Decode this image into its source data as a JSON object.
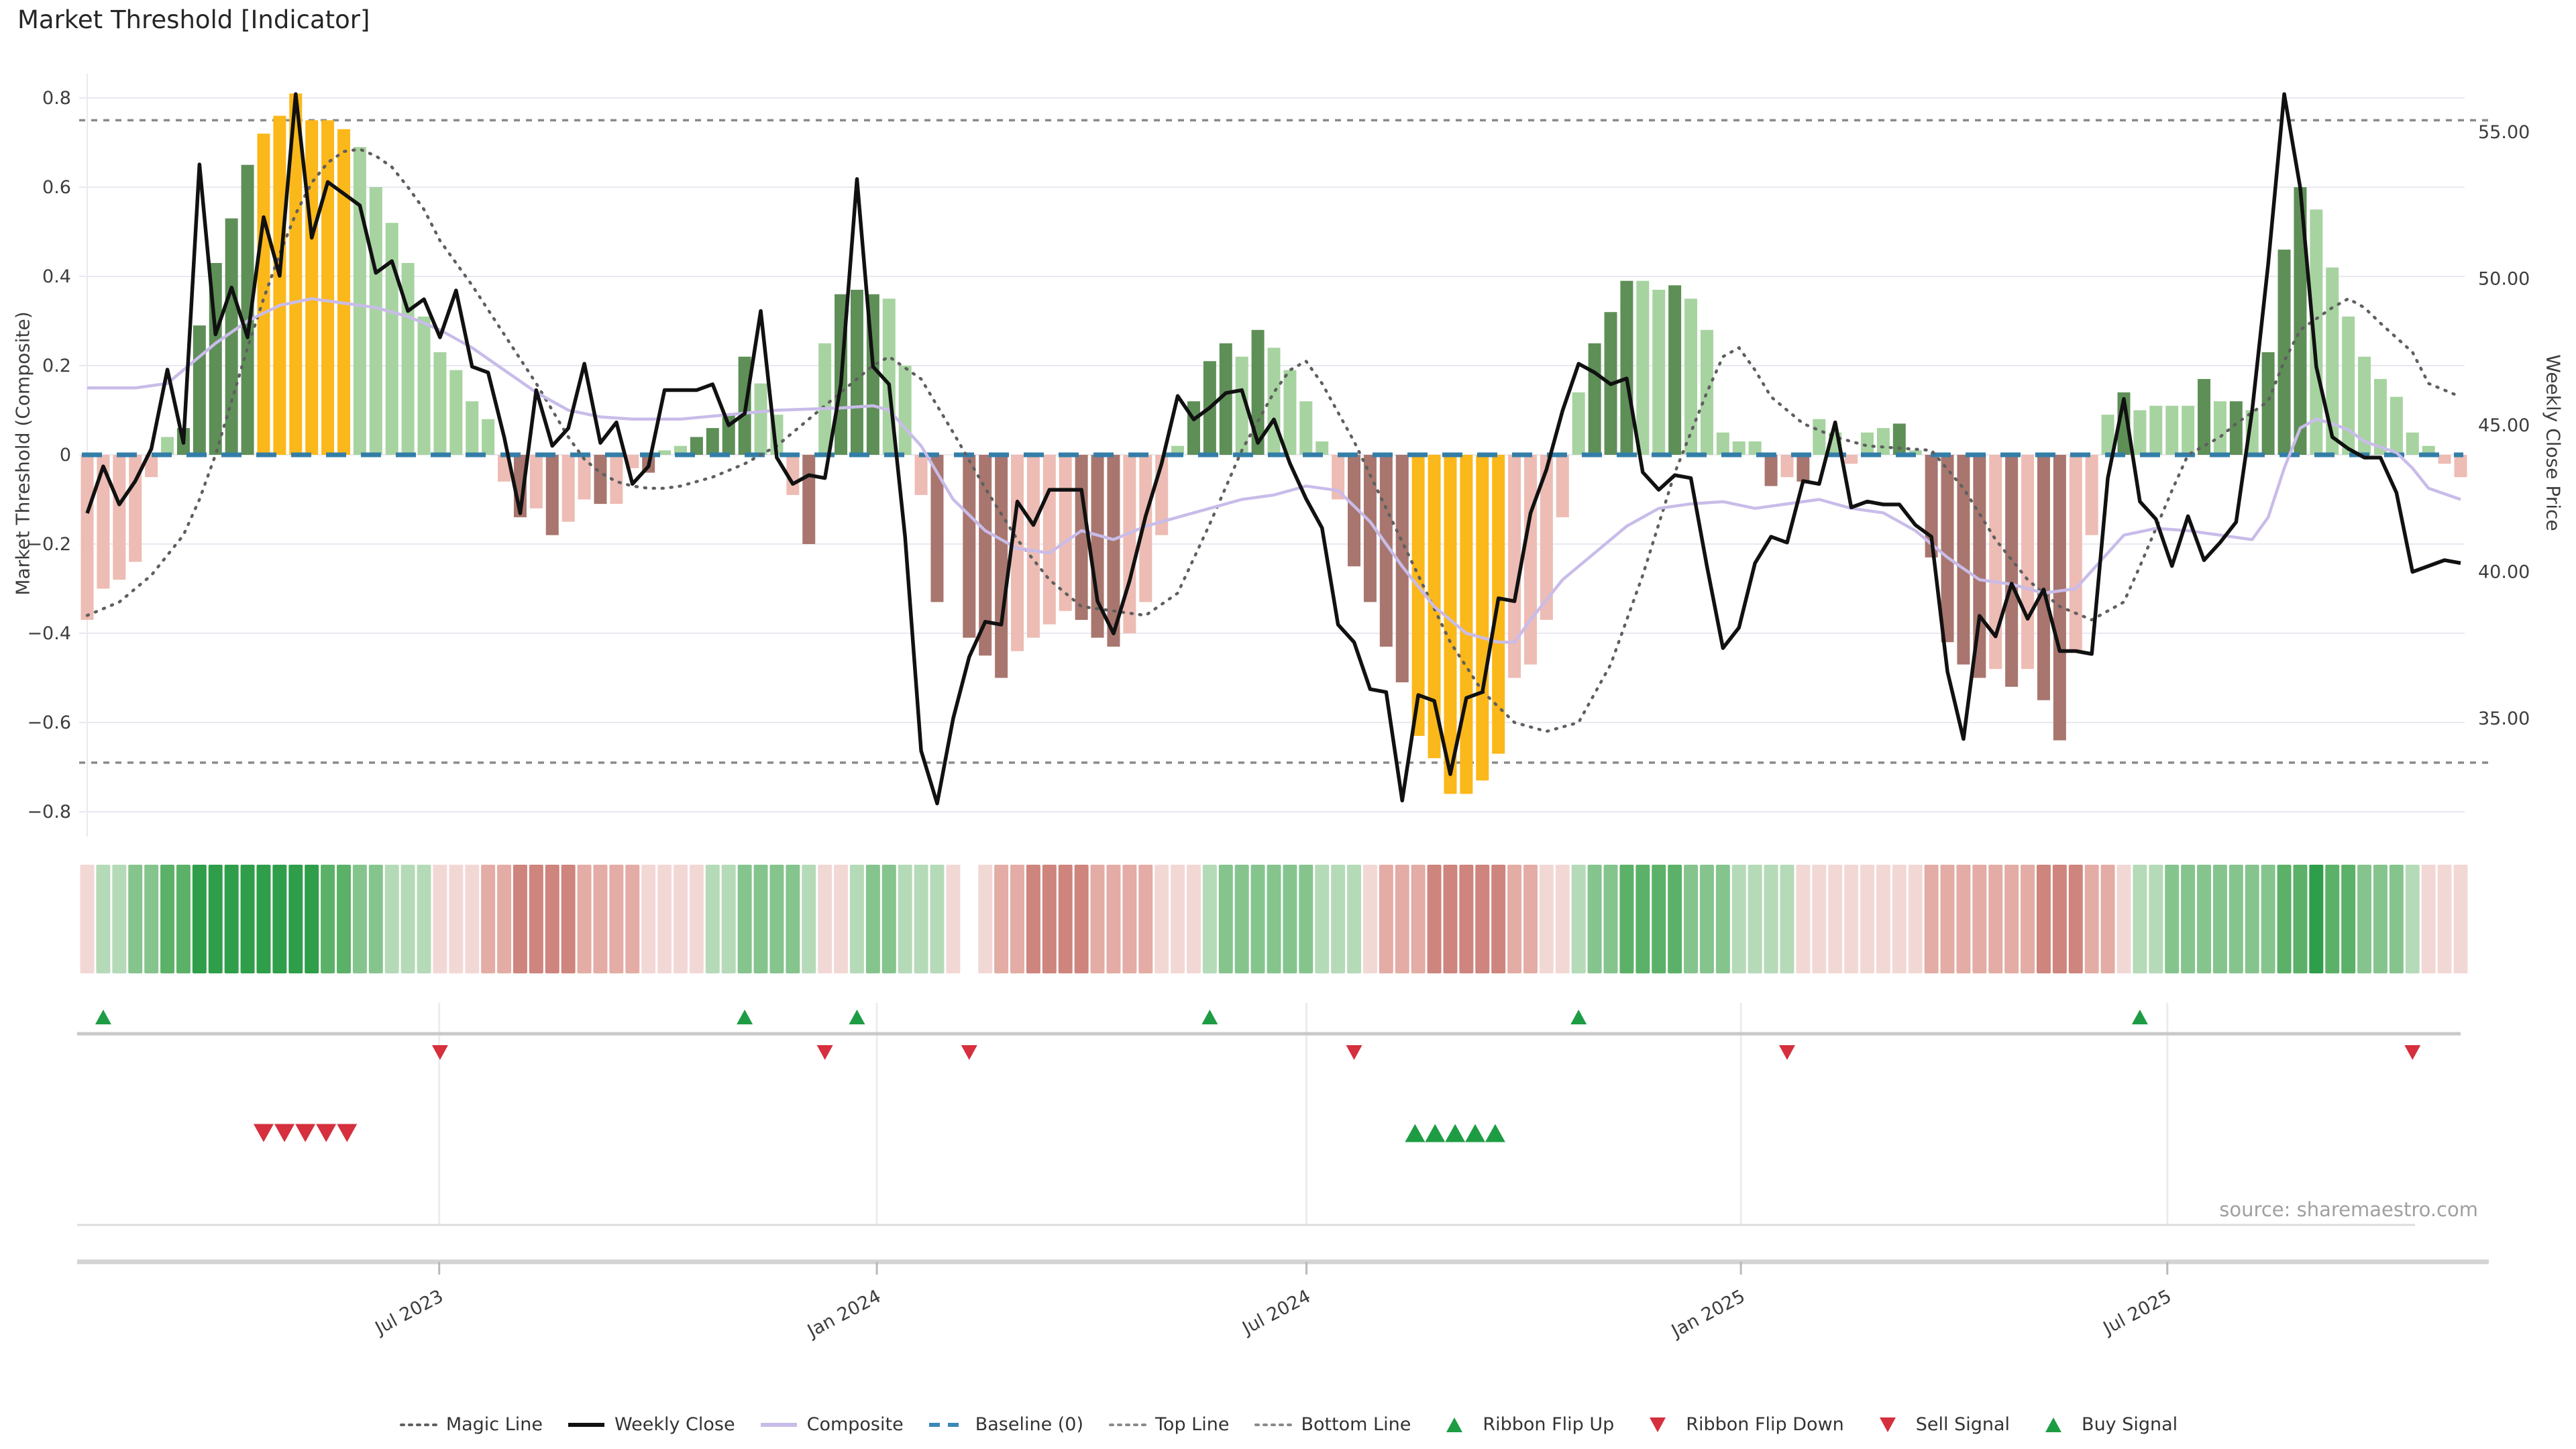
{
  "title": "Market Threshold [Indicator]",
  "source": "source: sharemaestro.com",
  "axes": {
    "left_label": "Market Threshold (Composite)",
    "right_label": "Weekly Close Price",
    "left_ticks": [
      {
        "value": 0.8,
        "label": "0.8"
      },
      {
        "value": 0.6,
        "label": "0.6"
      },
      {
        "value": 0.4,
        "label": "0.4"
      },
      {
        "value": 0.2,
        "label": "0.2"
      },
      {
        "value": 0.0,
        "label": "0"
      },
      {
        "value": -0.2,
        "label": "−0.2"
      },
      {
        "value": -0.4,
        "label": "−0.4"
      },
      {
        "value": -0.6,
        "label": "−0.6"
      },
      {
        "value": -0.8,
        "label": "−0.8"
      }
    ],
    "right_ticks": [
      {
        "value": 55,
        "label": "55.00"
      },
      {
        "value": 50,
        "label": "50.00"
      },
      {
        "value": 45,
        "label": "45.00"
      },
      {
        "value": 40,
        "label": "40.00"
      },
      {
        "value": 35,
        "label": "35.00"
      }
    ],
    "x_ticks": [
      {
        "week": 21.95,
        "label": "Jul 2023"
      },
      {
        "week": 49.24,
        "label": "Jan 2024"
      },
      {
        "week": 76.03,
        "label": "Jul 2024"
      },
      {
        "week": 103.12,
        "label": "Jan 2025"
      },
      {
        "week": 129.71,
        "label": "Jul 2025"
      }
    ]
  },
  "legend": {
    "items": [
      {
        "label": "Magic Line",
        "marker": "dotted",
        "color": "#5f5f5f"
      },
      {
        "label": "Weekly Close",
        "marker": "solid",
        "color": "#111111"
      },
      {
        "label": "Composite",
        "marker": "solid",
        "color": "#c9bce9"
      },
      {
        "label": "Baseline (0)",
        "marker": "dashed",
        "color": "#3c87b8"
      },
      {
        "label": "Top Line",
        "marker": "dotted",
        "color": "#8a8a8a"
      },
      {
        "label": "Bottom Line",
        "marker": "dotted",
        "color": "#8a8a8a"
      },
      {
        "label": "Ribbon Flip Up",
        "marker": "tri-up",
        "color": "#1e9c44"
      },
      {
        "label": "Ribbon Flip Down",
        "marker": "tri-down",
        "color": "#d62f3d"
      },
      {
        "label": "Sell Signal",
        "marker": "tri-down",
        "color": "#d62f3d"
      },
      {
        "label": "Buy Signal",
        "marker": "tri-up",
        "color": "#1e9c44"
      }
    ]
  },
  "colors": {
    "bar_yellow": "#fbb81a",
    "bar_green_dark": "#5e8f57",
    "bar_green_light": "#a7d3a0",
    "bar_red_dark": "#a8766e",
    "bar_red_light": "#edbcb4",
    "weekly_close": "#111111",
    "composite": "#c9bce9",
    "magic": "#5f5f5f",
    "top_bottom": "#8a8a8a",
    "baseline": "#337ea8",
    "signal_up": "#1e9c44",
    "signal_down": "#d62f3d",
    "grid": "#e9e9f1",
    "tick_text": "#3d3d3d",
    "ribbon_scale": {
      "4": "#2f9e4a",
      "3": "#5cb168",
      "2": "#86c48e",
      "1": "#b5dab8",
      "-1": "#f2d8d5",
      "-2": "#e3aca5",
      "-3": "#cd857d",
      "0": "#ffffff"
    }
  },
  "chart_data": {
    "type": "bar",
    "subtype": "composite-threshold-indicator-with-price-overlay",
    "weeks": 149,
    "left_axis_range": [
      -0.9,
      0.9
    ],
    "right_axis_range": [
      33.5,
      57.5
    ],
    "top_line": 0.75,
    "bottom_line": -0.69,
    "baseline": 0,
    "bars": {
      "values": [
        -0.37,
        -0.3,
        -0.28,
        -0.24,
        -0.05,
        0.04,
        0.06,
        0.29,
        0.43,
        0.53,
        0.65,
        0.72,
        0.76,
        0.81,
        0.75,
        0.75,
        0.73,
        0.69,
        0.6,
        0.52,
        0.43,
        0.31,
        0.23,
        0.19,
        0.12,
        0.08,
        -0.06,
        -0.14,
        -0.12,
        -0.18,
        -0.15,
        -0.1,
        -0.11,
        -0.11,
        -0.03,
        -0.04,
        0.01,
        0.02,
        0.04,
        0.06,
        0.09,
        0.22,
        0.16,
        0.09,
        -0.09,
        -0.2,
        0.25,
        0.36,
        0.37,
        0.36,
        0.35,
        0.2,
        -0.09,
        -0.33,
        0,
        -0.41,
        -0.45,
        -0.5,
        -0.44,
        -0.41,
        -0.38,
        -0.35,
        -0.37,
        -0.41,
        -0.43,
        -0.4,
        -0.33,
        -0.18,
        0.02,
        0.12,
        0.21,
        0.25,
        0.22,
        0.28,
        0.24,
        0.19,
        0.12,
        0.03,
        -0.1,
        -0.25,
        -0.33,
        -0.43,
        -0.51,
        -0.63,
        -0.68,
        -0.76,
        -0.76,
        -0.73,
        -0.67,
        -0.5,
        -0.47,
        -0.37,
        -0.14,
        0.14,
        0.25,
        0.32,
        0.39,
        0.39,
        0.37,
        0.38,
        0.35,
        0.28,
        0.05,
        0.03,
        0.03,
        -0.07,
        -0.05,
        -0.06,
        0.08,
        0.05,
        -0.02,
        0.05,
        0.06,
        0.07,
        0.01,
        -0.23,
        -0.42,
        -0.47,
        -0.5,
        -0.48,
        -0.52,
        -0.48,
        -0.55,
        -0.64,
        -0.44,
        -0.18,
        0.09,
        0.14,
        0.1,
        0.11,
        0.11,
        0.11,
        0.17,
        0.12,
        0.12,
        0.1,
        0.23,
        0.46,
        0.6,
        0.55,
        0.42,
        0.31,
        0.22,
        0.17,
        0.13,
        0.05,
        0.02,
        -0.02,
        -0.05
      ],
      "tones": "rrrrrgGGGGGYYYYYYgggggggggrRrRrrRrrRggGGGGggrRgGGGggrRnRRRrrrrRRRrrrgGGGgGggggrRRRRYYYYYYrrrrgGGGggGgggggRrRggrggGgRRRRrRrRRrrgGggggGgGgGGGggggggggrr"
    },
    "weekly_close": [
      42.0,
      43.6,
      42.3,
      43.1,
      44.2,
      46.9,
      44.4,
      53.9,
      48.1,
      49.7,
      48.0,
      52.1,
      50.1,
      56.3,
      51.4,
      53.3,
      52.9,
      52.5,
      50.2,
      50.6,
      48.9,
      49.3,
      48.0,
      49.6,
      47.0,
      46.8,
      44.6,
      42.0,
      46.2,
      44.3,
      44.9,
      47.1,
      44.4,
      45.1,
      43.0,
      43.6,
      46.2,
      46.2,
      46.2,
      46.4,
      45.0,
      45.4,
      48.9,
      43.9,
      43.0,
      43.3,
      43.2,
      46.4,
      53.4,
      47.0,
      46.4,
      41.2,
      33.9,
      32.1,
      35.0,
      37.1,
      38.3,
      38.2,
      42.4,
      41.6,
      42.8,
      42.8,
      42.8,
      39.0,
      37.9,
      39.7,
      41.9,
      43.7,
      46.0,
      45.2,
      45.6,
      46.1,
      46.2,
      44.4,
      45.2,
      43.7,
      42.5,
      41.5,
      38.2,
      37.6,
      36.0,
      35.9,
      32.2,
      35.8,
      35.6,
      33.1,
      35.7,
      35.9,
      39.1,
      39.0,
      42.0,
      43.5,
      45.5,
      47.1,
      46.8,
      46.4,
      46.6,
      43.4,
      42.8,
      43.3,
      43.2,
      40.2,
      37.4,
      38.1,
      40.3,
      41.2,
      41.0,
      43.1,
      43.0,
      45.1,
      42.2,
      42.4,
      42.3,
      42.3,
      41.6,
      41.2,
      36.6,
      34.3,
      38.5,
      37.8,
      39.6,
      38.4,
      39.4,
      37.3,
      37.3,
      37.2,
      43.2,
      45.9,
      42.4,
      41.8,
      40.2,
      41.9,
      40.4,
      41.0,
      41.7,
      45.5,
      50.5,
      56.3,
      53.1,
      47.0,
      44.6,
      44.2,
      43.9,
      43.9,
      42.7,
      40.0,
      40.2,
      40.4,
      40.3
    ],
    "composite_keypoints": [
      [
        0,
        0.15
      ],
      [
        3,
        0.15
      ],
      [
        5,
        0.16
      ],
      [
        8,
        0.25
      ],
      [
        10,
        0.3
      ],
      [
        12,
        0.335
      ],
      [
        14,
        0.35
      ],
      [
        16,
        0.34
      ],
      [
        18,
        0.33
      ],
      [
        20,
        0.31
      ],
      [
        22,
        0.28
      ],
      [
        24,
        0.24
      ],
      [
        26,
        0.19
      ],
      [
        28,
        0.14
      ],
      [
        30,
        0.1
      ],
      [
        32,
        0.085
      ],
      [
        34,
        0.08
      ],
      [
        37,
        0.08
      ],
      [
        40,
        0.09
      ],
      [
        43,
        0.1
      ],
      [
        47,
        0.105
      ],
      [
        49,
        0.11
      ],
      [
        50,
        0.1
      ],
      [
        51,
        0.06
      ],
      [
        52,
        0.02
      ],
      [
        53,
        -0.04
      ],
      [
        54,
        -0.1
      ],
      [
        56,
        -0.17
      ],
      [
        58,
        -0.21
      ],
      [
        60,
        -0.22
      ],
      [
        62,
        -0.17
      ],
      [
        64,
        -0.19
      ],
      [
        66,
        -0.16
      ],
      [
        68,
        -0.14
      ],
      [
        70,
        -0.12
      ],
      [
        72,
        -0.1
      ],
      [
        74,
        -0.09
      ],
      [
        76,
        -0.07
      ],
      [
        78,
        -0.08
      ],
      [
        80,
        -0.15
      ],
      [
        82,
        -0.25
      ],
      [
        84,
        -0.34
      ],
      [
        86,
        -0.4
      ],
      [
        88,
        -0.42
      ],
      [
        89,
        -0.42
      ],
      [
        90,
        -0.37
      ],
      [
        92,
        -0.28
      ],
      [
        94,
        -0.22
      ],
      [
        96,
        -0.16
      ],
      [
        98,
        -0.12
      ],
      [
        100,
        -0.11
      ],
      [
        102,
        -0.105
      ],
      [
        104,
        -0.12
      ],
      [
        106,
        -0.11
      ],
      [
        108,
        -0.1
      ],
      [
        110,
        -0.12
      ],
      [
        112,
        -0.13
      ],
      [
        114,
        -0.17
      ],
      [
        116,
        -0.23
      ],
      [
        118,
        -0.28
      ],
      [
        120,
        -0.29
      ],
      [
        122,
        -0.31
      ],
      [
        124,
        -0.3
      ],
      [
        125,
        -0.26
      ],
      [
        127,
        -0.18
      ],
      [
        129,
        -0.165
      ],
      [
        131,
        -0.17
      ],
      [
        133,
        -0.18
      ],
      [
        135,
        -0.19
      ],
      [
        136,
        -0.14
      ],
      [
        137,
        -0.03
      ],
      [
        138,
        0.06
      ],
      [
        139,
        0.08
      ],
      [
        140,
        0.07
      ],
      [
        141,
        0.056
      ],
      [
        142,
        0.03
      ],
      [
        144,
        0.005
      ],
      [
        145,
        -0.03
      ],
      [
        146,
        -0.075
      ],
      [
        148,
        -0.1
      ]
    ],
    "magic_keypoints": [
      [
        0,
        -0.36
      ],
      [
        2,
        -0.33
      ],
      [
        4,
        -0.27
      ],
      [
        6,
        -0.18
      ],
      [
        7,
        -0.1
      ],
      [
        8,
        0
      ],
      [
        9,
        0.12
      ],
      [
        10,
        0.24
      ],
      [
        11,
        0.35
      ],
      [
        12,
        0.45
      ],
      [
        13,
        0.54
      ],
      [
        14,
        0.61
      ],
      [
        15,
        0.655
      ],
      [
        16,
        0.68
      ],
      [
        17,
        0.685
      ],
      [
        18,
        0.67
      ],
      [
        19,
        0.645
      ],
      [
        20,
        0.6
      ],
      [
        21,
        0.55
      ],
      [
        22,
        0.48
      ],
      [
        23,
        0.43
      ],
      [
        24,
        0.38
      ],
      [
        26,
        0.27
      ],
      [
        28,
        0.16
      ],
      [
        29,
        0.1
      ],
      [
        30,
        0.04
      ],
      [
        31,
        -0.01
      ],
      [
        32,
        -0.04
      ],
      [
        33,
        -0.06
      ],
      [
        34,
        -0.07
      ],
      [
        35,
        -0.075
      ],
      [
        36,
        -0.075
      ],
      [
        37,
        -0.07
      ],
      [
        38,
        -0.06
      ],
      [
        39,
        -0.05
      ],
      [
        40,
        -0.035
      ],
      [
        41,
        -0.02
      ],
      [
        42,
        0
      ],
      [
        43,
        0.02
      ],
      [
        44,
        0.05
      ],
      [
        45,
        0.08
      ],
      [
        46,
        0.11
      ],
      [
        47,
        0.14
      ],
      [
        48,
        0.17
      ],
      [
        49,
        0.2
      ],
      [
        50,
        0.22
      ],
      [
        52,
        0.17
      ],
      [
        54,
        0.05
      ],
      [
        56,
        -0.075
      ],
      [
        58,
        -0.19
      ],
      [
        60,
        -0.28
      ],
      [
        62,
        -0.34
      ],
      [
        64,
        -0.35
      ],
      [
        66,
        -0.36
      ],
      [
        68,
        -0.31
      ],
      [
        70,
        -0.155
      ],
      [
        72,
        0.01
      ],
      [
        74,
        0.14
      ],
      [
        75,
        0.19
      ],
      [
        76,
        0.21
      ],
      [
        77,
        0.16
      ],
      [
        79,
        0.03
      ],
      [
        81,
        -0.12
      ],
      [
        83,
        -0.27
      ],
      [
        85,
        -0.42
      ],
      [
        87,
        -0.53
      ],
      [
        89,
        -0.6
      ],
      [
        91,
        -0.62
      ],
      [
        93,
        -0.6
      ],
      [
        95,
        -0.47
      ],
      [
        97,
        -0.27
      ],
      [
        99,
        -0.04
      ],
      [
        101,
        0.14
      ],
      [
        102,
        0.22
      ],
      [
        103,
        0.24
      ],
      [
        104,
        0.19
      ],
      [
        105,
        0.13
      ],
      [
        107,
        0.07
      ],
      [
        109,
        0.04
      ],
      [
        111,
        0.02
      ],
      [
        113,
        0.015
      ],
      [
        115,
        0.01
      ],
      [
        117,
        -0.075
      ],
      [
        119,
        -0.19
      ],
      [
        121,
        -0.28
      ],
      [
        123,
        -0.34
      ],
      [
        125,
        -0.37
      ],
      [
        127,
        -0.33
      ],
      [
        128,
        -0.25
      ],
      [
        130,
        -0.08
      ],
      [
        131,
        0
      ],
      [
        133,
        0.04
      ],
      [
        134,
        0.07
      ],
      [
        136,
        0.12
      ],
      [
        137,
        0.21
      ],
      [
        138,
        0.28
      ],
      [
        140,
        0.33
      ],
      [
        141,
        0.35
      ],
      [
        142,
        0.33
      ],
      [
        143,
        0.295
      ],
      [
        145,
        0.23
      ],
      [
        146,
        0.16
      ],
      [
        148,
        0.13
      ]
    ],
    "ribbon": [
      -1,
      1,
      1,
      2,
      2,
      3,
      3,
      4,
      4,
      4,
      4,
      4,
      4,
      4,
      4,
      3,
      3,
      2,
      2,
      1,
      1,
      1,
      -1,
      -1,
      -1,
      -2,
      -2,
      -3,
      -3,
      -3,
      -3,
      -2,
      -2,
      -2,
      -2,
      -1,
      -1,
      -1,
      -1,
      1,
      1,
      2,
      2,
      2,
      2,
      1,
      -1,
      -1,
      1,
      2,
      2,
      1,
      1,
      1,
      -1,
      0,
      -1,
      -2,
      -2,
      -3,
      -3,
      -3,
      -3,
      -2,
      -2,
      -2,
      -2,
      -1,
      -1,
      -1,
      1,
      2,
      2,
      2,
      2,
      2,
      2,
      1,
      1,
      1,
      -1,
      -2,
      -2,
      -2,
      -3,
      -3,
      -3,
      -3,
      -3,
      -2,
      -2,
      -1,
      -1,
      1,
      2,
      2,
      3,
      3,
      3,
      3,
      2,
      2,
      2,
      1,
      1,
      1,
      1,
      -1,
      -1,
      -1,
      -1,
      -1,
      -1,
      -1,
      -1,
      -2,
      -2,
      -2,
      -2,
      -2,
      -2,
      -2,
      -3,
      -3,
      -3,
      -2,
      -2,
      -1,
      1,
      1,
      2,
      2,
      2,
      2,
      2,
      2,
      2,
      3,
      3,
      4,
      3,
      3,
      2,
      2,
      2,
      1,
      -1,
      -1,
      -1
    ],
    "signals": {
      "ribbon_flip_up_weeks": [
        1,
        41,
        48,
        70,
        93,
        128
      ],
      "ribbon_flip_down_weeks": [
        22,
        46,
        55,
        79,
        106,
        145
      ],
      "sell_signal_weeks": [
        11,
        12.3,
        13.6,
        14.9,
        16.2
      ],
      "buy_signal_weeks": [
        82.8,
        84.05,
        85.3,
        86.55,
        87.8
      ]
    }
  }
}
